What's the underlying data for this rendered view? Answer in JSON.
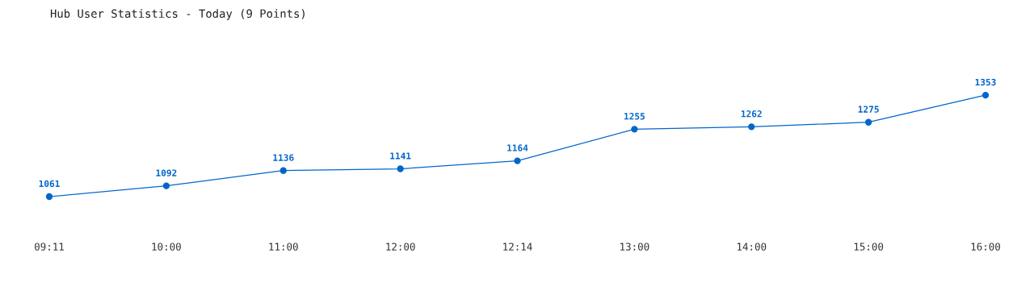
{
  "chart_data": {
    "type": "line",
    "title": "Hub User Statistics - Today (9 Points)",
    "categories": [
      "09:11",
      "10:00",
      "11:00",
      "12:00",
      "12:14",
      "13:00",
      "14:00",
      "15:00",
      "16:00"
    ],
    "series": [
      {
        "color": "#0066cc",
        "values": [
          1061,
          1092,
          1136,
          1141,
          1164,
          1255,
          1262,
          1275,
          1353
        ]
      }
    ],
    "data_labels": true,
    "marker": "circle",
    "line_style": "solid",
    "grid": false,
    "legend": false
  }
}
